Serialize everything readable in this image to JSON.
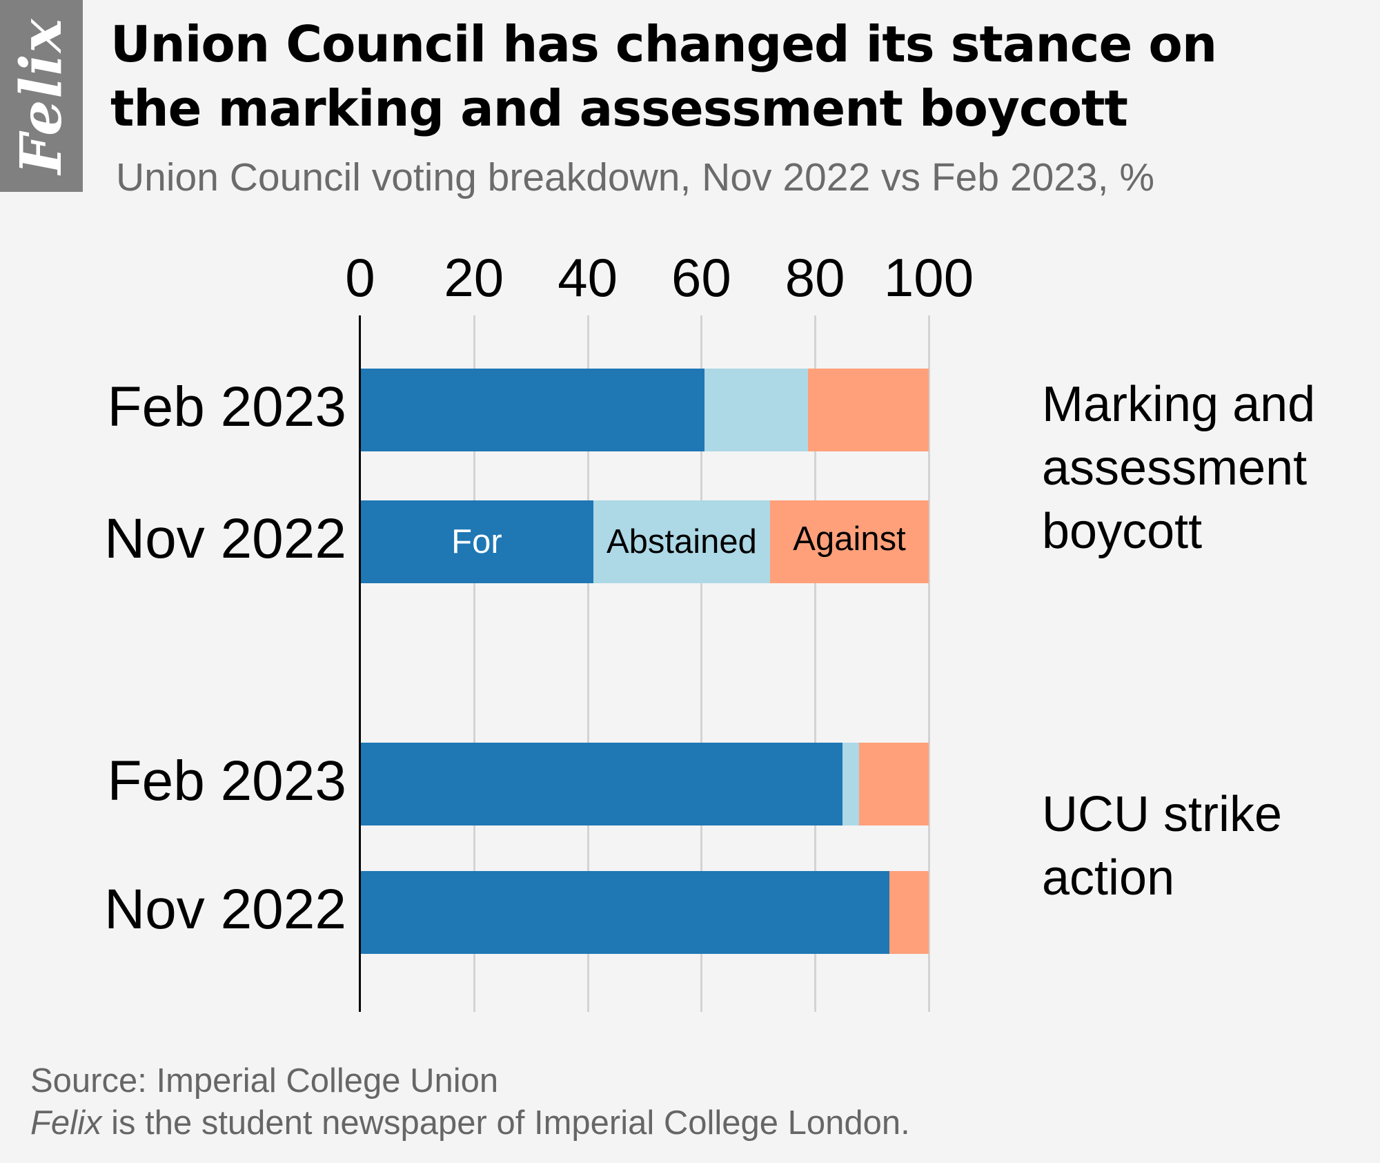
{
  "logo": {
    "text": "Felix"
  },
  "header": {
    "title": "Union Council has changed its stance on the marking and assessment boycott",
    "title_lines": [
      "Union Council has changed its stance on",
      "the marking and assessment boycott"
    ],
    "subtitle": "Union Council voting breakdown, Nov 2022 vs Feb 2023, %"
  },
  "colors": {
    "for": "#1f77b4",
    "abstained": "#add8e6",
    "against": "#ffa07a",
    "background": "#f4f4f4",
    "gridline": "#d3d3d3"
  },
  "axis": {
    "ticks": [
      "0",
      "20",
      "40",
      "60",
      "80",
      "100"
    ]
  },
  "legend_inline": {
    "for": "For",
    "abstained": "Abstained",
    "against": "Against"
  },
  "groups": [
    {
      "label": "Marking and assessment boycott",
      "label_lines": [
        "Marking and",
        "assessment",
        "boycott"
      ],
      "rows": [
        {
          "label": "Feb 2023",
          "for": 60.6,
          "abstained": 18.2,
          "against": 21.2
        },
        {
          "label": "Nov 2022",
          "for": 41.0,
          "abstained": 31.1,
          "against": 27.9
        }
      ]
    },
    {
      "label": "UCU strike action",
      "label_lines": [
        "UCU strike",
        "action"
      ],
      "rows": [
        {
          "label": "Feb 2023",
          "for": 84.8,
          "abstained": 3.0,
          "against": 12.2
        },
        {
          "label": "Nov 2022",
          "for": 93.1,
          "abstained": 0.0,
          "against": 6.9
        }
      ]
    }
  ],
  "footer": {
    "source": "Source: Imperial College Union",
    "credit_name": "Felix",
    "credit_rest": " is the student newspaper of Imperial College London."
  },
  "chart_data": {
    "type": "bar",
    "orientation": "horizontal",
    "stacked": true,
    "title": "Union Council has changed its stance on the marking and assessment boycott",
    "subtitle": "Union Council voting breakdown, Nov 2022 vs Feb 2023, %",
    "xlabel": "",
    "ylabel": "",
    "xlim": [
      0,
      100
    ],
    "xticks": [
      0,
      20,
      40,
      60,
      80,
      100
    ],
    "grid": "vertical",
    "legend_position": "inline (labels inside Nov 2022 marking bar)",
    "groups": [
      "Marking and assessment boycott",
      "UCU strike action"
    ],
    "categories": [
      "Marking and assessment boycott — Feb 2023",
      "Marking and assessment boycott — Nov 2022",
      "UCU strike action — Feb 2023",
      "UCU strike action — Nov 2022"
    ],
    "series": [
      {
        "name": "For",
        "color": "#1f77b4",
        "values": [
          60.6,
          41.0,
          84.8,
          93.1
        ]
      },
      {
        "name": "Abstained",
        "color": "#add8e6",
        "values": [
          18.2,
          31.1,
          3.0,
          0.0
        ]
      },
      {
        "name": "Against",
        "color": "#ffa07a",
        "values": [
          21.2,
          27.9,
          12.2,
          6.9
        ]
      }
    ],
    "source": "Source: Imperial College Union"
  }
}
